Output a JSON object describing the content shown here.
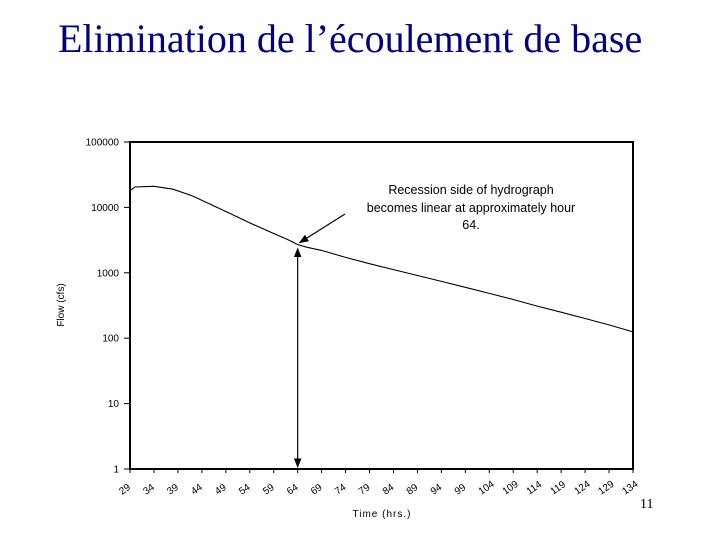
{
  "slide": {
    "title": "Elimination de l’écoulement de base",
    "page_number": "11"
  },
  "chart_data": {
    "type": "line",
    "title": "",
    "xlabel": "Time (hrs.)",
    "ylabel": "Flow (cfs)",
    "y_scale": "log",
    "ylim": [
      1,
      100000
    ],
    "y_ticks": [
      "1",
      "10",
      "100",
      "1000",
      "10000",
      "100000"
    ],
    "x_categories": [
      "29",
      "34",
      "39",
      "44",
      "49",
      "54",
      "59",
      "64",
      "69",
      "74",
      "79",
      "84",
      "89",
      "94",
      "99",
      "104",
      "109",
      "114",
      "119",
      "124",
      "129",
      "134"
    ],
    "xlim": [
      29,
      134
    ],
    "grid": false,
    "series": [
      {
        "x": [
          29,
          30,
          34,
          38,
          42,
          46,
          50,
          54,
          58,
          62,
          64,
          66,
          69,
          74,
          79,
          84,
          89,
          94,
          99,
          104,
          109,
          114,
          119,
          124,
          129,
          134
        ],
        "y": [
          18000,
          20500,
          21000,
          19000,
          15000,
          11000,
          8000,
          5800,
          4300,
          3200,
          2700,
          2450,
          2200,
          1720,
          1380,
          1120,
          910,
          740,
          600,
          485,
          390,
          310,
          250,
          200,
          160,
          125
        ]
      }
    ],
    "annotation": {
      "text_lines": [
        "Recession side of hydrograph",
        "becomes linear at approximately hour",
        "64."
      ],
      "arrow_x": 64,
      "arrow_y": 2700
    },
    "marker_line": {
      "x": 64
    }
  },
  "colors": {
    "title": "#000080",
    "line": "#000000"
  }
}
